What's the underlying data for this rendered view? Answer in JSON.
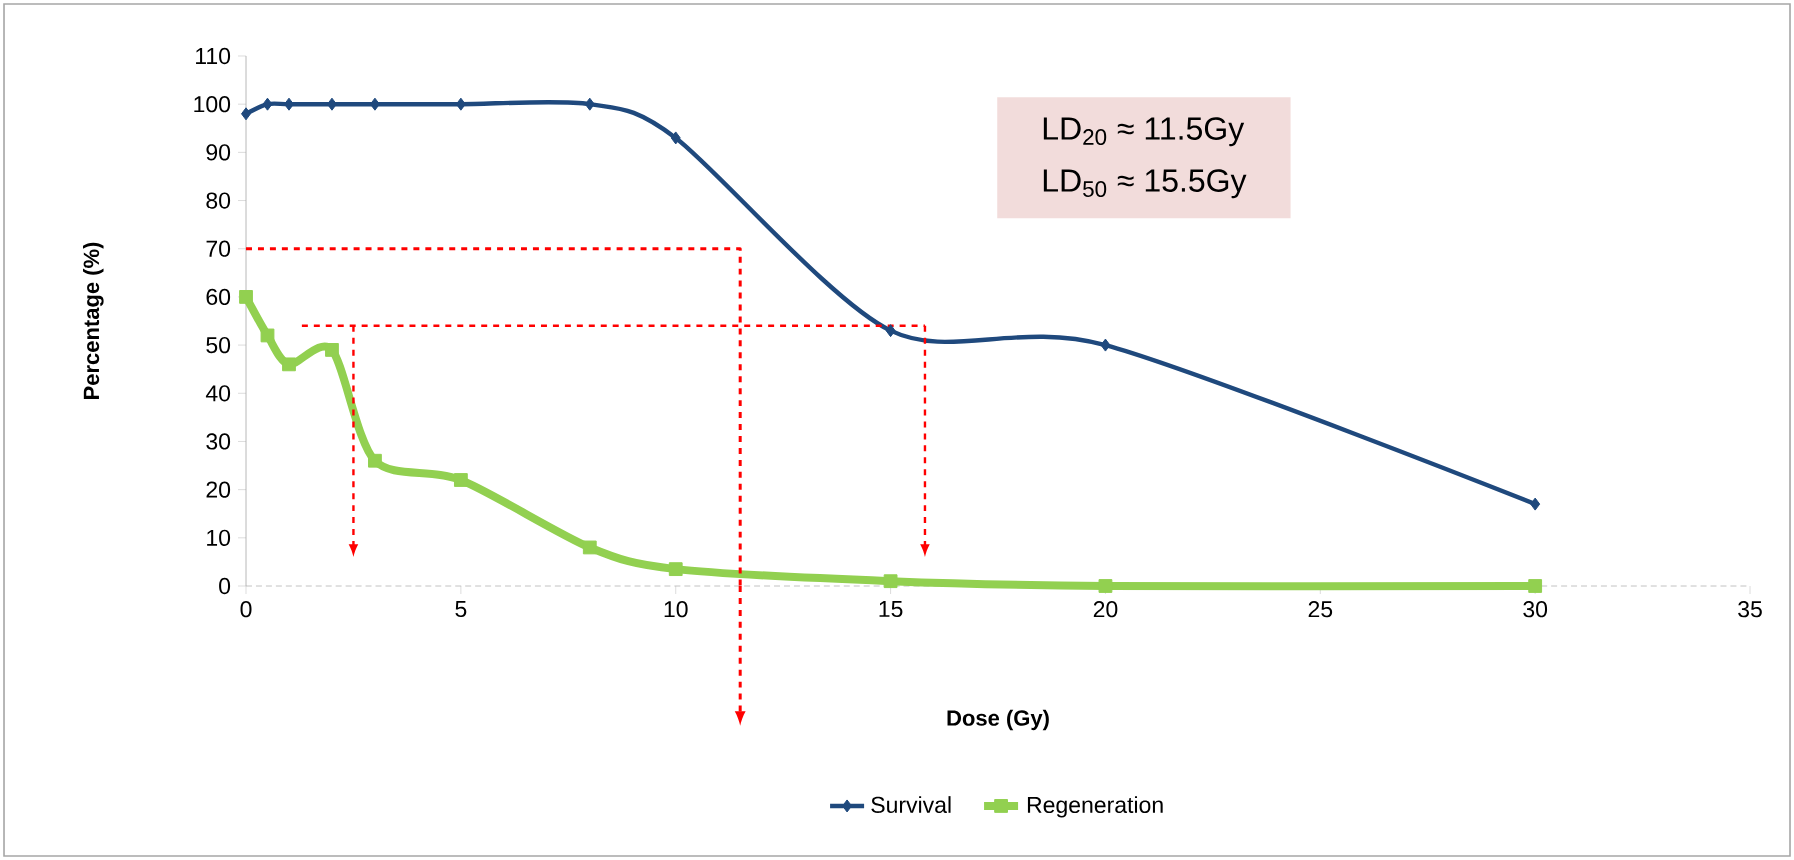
{
  "chart_data": {
    "type": "line",
    "xlabel": "Dose (Gy)",
    "ylabel": "Percentage (%)",
    "xlim": [
      0,
      35
    ],
    "xticks": [
      0,
      5,
      10,
      15,
      20,
      25,
      30,
      35
    ],
    "ylim": [
      0,
      110
    ],
    "yticks": [
      0,
      10,
      20,
      30,
      40,
      50,
      60,
      70,
      80,
      90,
      100,
      110
    ],
    "legend": "bottom",
    "grid": false,
    "annotations": [
      "LD$_{20}$ ≈ 11.5Gy",
      "LD$_{50}$ ≈ 15.5Gy"
    ],
    "series": [
      {
        "name": "Survival",
        "color": "#1f497d",
        "marker": "diamond",
        "x": [
          0,
          0.5,
          1,
          2,
          3,
          5,
          8,
          10,
          15,
          20,
          30
        ],
        "values": [
          98,
          100,
          100,
          100,
          100,
          100,
          100,
          93,
          53,
          50,
          17
        ]
      },
      {
        "name": "Regeneration",
        "color": "#92d050",
        "marker": "square",
        "x": [
          0,
          0.5,
          1,
          2,
          3,
          5,
          8,
          10,
          15,
          20,
          30
        ],
        "values": [
          60,
          52,
          46,
          49,
          26,
          22,
          8,
          3.5,
          1,
          0,
          0
        ]
      },
      {
        "color": "#ff0000",
        "marker": "none",
        "line_style": "dashed",
        "x": [
          0,
          11.5,
          11.5
        ],
        "values": [
          70,
          70,
          0
        ]
      },
      {
        "color": "#ff0000",
        "marker": "none",
        "line_style": "dashed",
        "x": [
          1.3,
          15.8
        ],
        "values": [
          54,
          54
        ]
      }
    ]
  }
}
